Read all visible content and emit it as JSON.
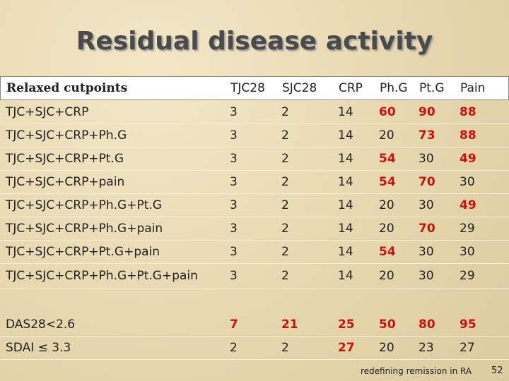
{
  "title": "Residual disease activity",
  "table": {
    "header": [
      "Relaxed cutpoints",
      "TJC28",
      "SJC28",
      "CRP",
      "Ph.G",
      "Pt.G",
      "Pain"
    ],
    "rows": [
      {
        "cells": [
          "TJC+SJC+CRP",
          "3",
          "2",
          "14",
          "60",
          "90",
          "88"
        ],
        "highlight": [
          false,
          false,
          false,
          false,
          true,
          true,
          true
        ]
      },
      {
        "cells": [
          "TJC+SJC+CRP+Ph.G",
          "3",
          "2",
          "14",
          "20",
          "73",
          "88"
        ],
        "highlight": [
          false,
          false,
          false,
          false,
          false,
          true,
          true
        ]
      },
      {
        "cells": [
          "TJC+SJC+CRP+Pt.G",
          "3",
          "2",
          "14",
          "54",
          "30",
          "49"
        ],
        "highlight": [
          false,
          false,
          false,
          false,
          true,
          false,
          true
        ]
      },
      {
        "cells": [
          "TJC+SJC+CRP+pain",
          "3",
          "2",
          "14",
          "54",
          "70",
          "30"
        ],
        "highlight": [
          false,
          false,
          false,
          false,
          true,
          true,
          false
        ]
      },
      {
        "cells": [
          "TJC+SJC+CRP+Ph.G+Pt.G",
          "3",
          "2",
          "14",
          "20",
          "30",
          "49"
        ],
        "highlight": [
          false,
          false,
          false,
          false,
          false,
          false,
          true
        ]
      },
      {
        "cells": [
          "TJC+SJC+CRP+Ph.G+pain",
          "3",
          "2",
          "14",
          "20",
          "70",
          "29"
        ],
        "highlight": [
          false,
          false,
          false,
          false,
          false,
          true,
          false
        ]
      },
      {
        "cells": [
          "TJC+SJC+CRP+Pt.G+pain",
          "3",
          "2",
          "14",
          "54",
          "30",
          "30"
        ],
        "highlight": [
          false,
          false,
          false,
          false,
          true,
          false,
          false
        ]
      },
      {
        "cells": [
          "TJC+SJC+CRP+Ph.G+Pt.G+pain",
          "3",
          "2",
          "14",
          "20",
          "30",
          "29"
        ],
        "highlight": [
          false,
          false,
          false,
          false,
          false,
          false,
          false
        ]
      },
      {
        "cells": [
          "DAS28<2.6",
          "7",
          "21",
          "25",
          "50",
          "80",
          "95"
        ],
        "highlight": [
          false,
          true,
          true,
          true,
          true,
          true,
          true
        ]
      },
      {
        "cells": [
          "SDAI ≤ 3.3",
          "2",
          "2",
          "27",
          "20",
          "23",
          "27"
        ],
        "highlight": [
          false,
          false,
          false,
          true,
          false,
          false,
          false
        ]
      }
    ]
  },
  "footer": {
    "note": "redefining remission in RA",
    "page": "52"
  }
}
